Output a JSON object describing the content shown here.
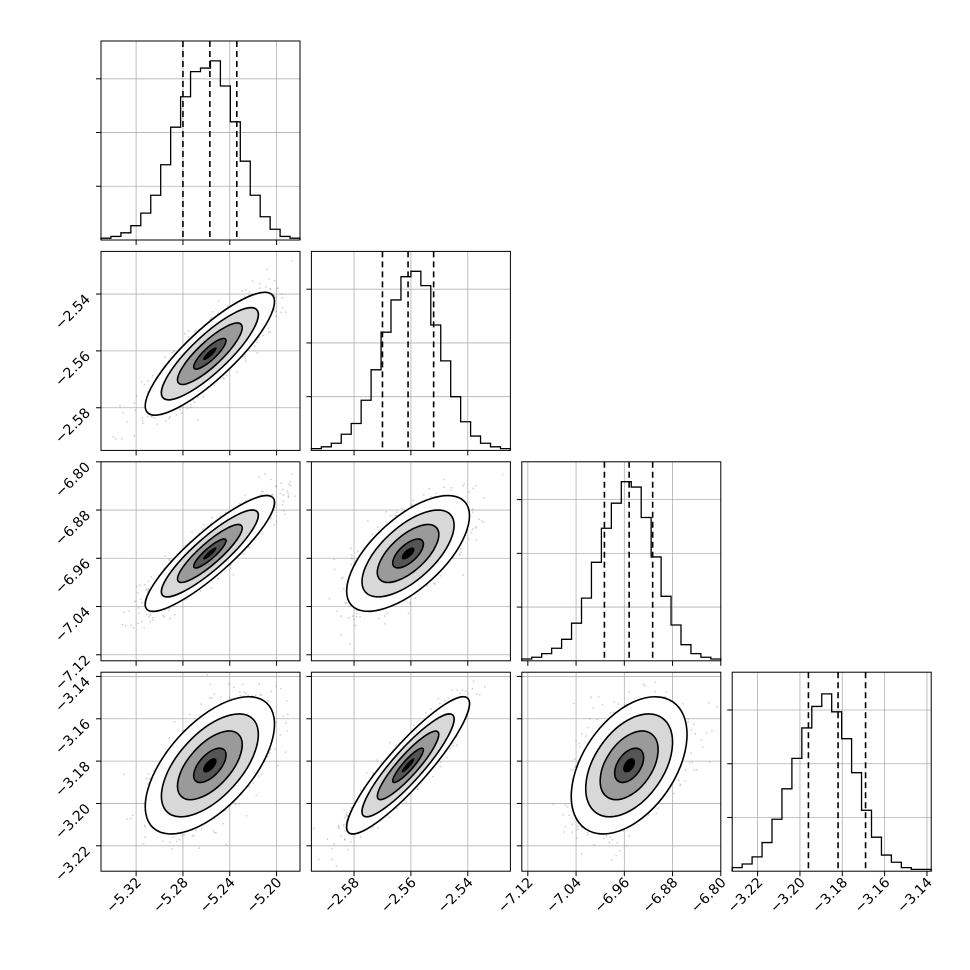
{
  "chart_data": {
    "type": "corner",
    "parameters": 4,
    "axes": {
      "x_ticks": [
        [
          "−5.32",
          "−5.28",
          "−5.24",
          "−5.20"
        ],
        [
          "−2.58",
          "−2.56",
          "−2.54"
        ],
        [
          "−7.12",
          "−7.04",
          "−6.96",
          "−6.88",
          "−6.80"
        ],
        [
          "−3.22",
          "−3.20",
          "−3.18",
          "−3.16",
          "−3.14"
        ]
      ],
      "y_ticks": [
        [],
        [
          "−2.54",
          "−2.56",
          "−2.58"
        ],
        [
          "−6.80",
          "−6.88",
          "−6.96",
          "−7.04",
          "−7.12"
        ],
        [
          "−3.14",
          "−3.16",
          "−3.18",
          "−3.20",
          "−3.22"
        ]
      ]
    },
    "ranges": [
      [
        -5.35,
        -5.18
      ],
      [
        -2.595,
        -2.525
      ],
      [
        -7.13,
        -6.8
      ],
      [
        -3.232,
        -3.138
      ]
    ],
    "quantiles": [
      [
        -5.28,
        -5.257,
        -5.234
      ],
      [
        -2.57,
        -2.561,
        -2.552
      ],
      [
        -6.993,
        -6.952,
        -6.913
      ],
      [
        -3.196,
        -3.182,
        -3.169
      ]
    ],
    "histograms": [
      [
        0.01,
        0.02,
        0.04,
        0.08,
        0.15,
        0.25,
        0.42,
        0.63,
        0.8,
        0.94,
        0.96,
        1.0,
        0.86,
        0.66,
        0.44,
        0.25,
        0.13,
        0.06,
        0.02,
        0.01
      ],
      [
        0.01,
        0.02,
        0.04,
        0.09,
        0.15,
        0.28,
        0.45,
        0.66,
        0.84,
        0.97,
        1.0,
        0.92,
        0.7,
        0.5,
        0.3,
        0.16,
        0.08,
        0.04,
        0.02,
        0.01
      ],
      [
        0.01,
        0.02,
        0.04,
        0.07,
        0.12,
        0.21,
        0.35,
        0.55,
        0.74,
        0.88,
        1.0,
        0.97,
        0.8,
        0.58,
        0.36,
        0.2,
        0.09,
        0.04,
        0.02,
        0.01
      ],
      [
        0.02,
        0.04,
        0.08,
        0.16,
        0.29,
        0.46,
        0.63,
        0.8,
        0.92,
        0.99,
        0.89,
        0.74,
        0.55,
        0.34,
        0.19,
        0.09,
        0.05,
        0.02,
        0.01,
        0.01
      ]
    ],
    "correlations": [
      {
        "row": 1,
        "col": 0,
        "r": 0.85
      },
      {
        "row": 2,
        "col": 0,
        "r": 0.88
      },
      {
        "row": 2,
        "col": 1,
        "r": 0.65
      },
      {
        "row": 3,
        "col": 0,
        "r": 0.6
      },
      {
        "row": 3,
        "col": 1,
        "r": 0.9
      },
      {
        "row": 3,
        "col": 2,
        "r": 0.45
      }
    ],
    "colors": {
      "samples": "#9a9a9a",
      "contour": "#000000",
      "grid": "#b0b0b0",
      "density_dark": "#000000"
    },
    "grid": true,
    "legend": "none"
  }
}
